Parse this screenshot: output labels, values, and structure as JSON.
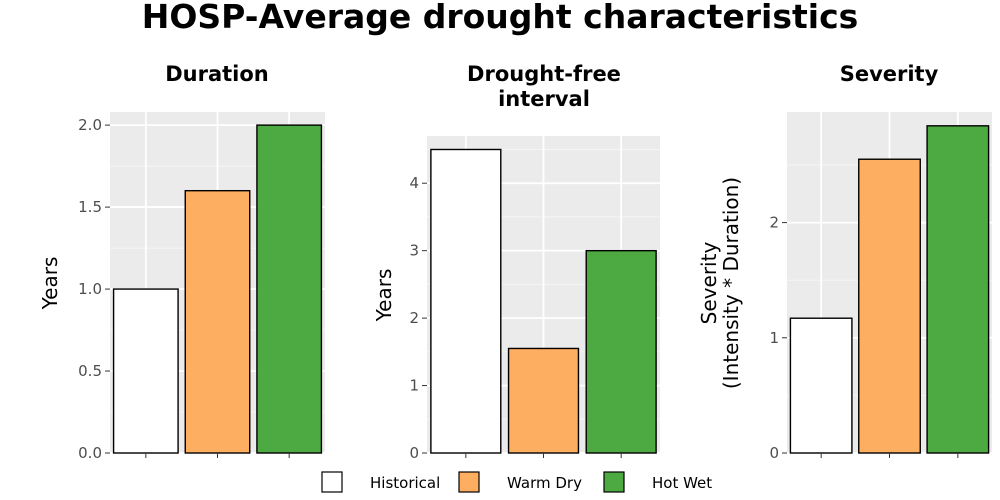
{
  "title": "HOSP-Average drought characteristics",
  "legend": {
    "position": "bottom",
    "items": [
      {
        "label": "Historical",
        "color": "#ffffff"
      },
      {
        "label": "Warm Dry",
        "color": "#fdae61"
      },
      {
        "label": "Hot Wet",
        "color": "#4daa42"
      }
    ]
  },
  "chart_data": [
    {
      "type": "bar",
      "title": "Duration",
      "ylabel": "Years",
      "xlabel": "",
      "categories": [
        "Historical",
        "Warm Dry",
        "Hot Wet"
      ],
      "values": [
        1.0,
        1.6,
        2.0
      ],
      "ylim": [
        0,
        2.08
      ],
      "yticks": [
        0,
        0.5,
        1.0,
        1.5,
        2.0
      ],
      "ytick_labels": [
        "0.0",
        "0.5",
        "1.0",
        "1.5",
        "2.0"
      ],
      "colors": [
        "#ffffff",
        "#fdae61",
        "#4daa42"
      ],
      "grid": true
    },
    {
      "type": "bar",
      "title": "Drought-free interval",
      "title_lines": [
        "Drought-free",
        "interval"
      ],
      "ylabel": "Years",
      "xlabel": "",
      "categories": [
        "Historical",
        "Warm Dry",
        "Hot Wet"
      ],
      "values": [
        4.5,
        1.55,
        3.0
      ],
      "ylim": [
        0,
        4.7
      ],
      "yticks": [
        0,
        1,
        2,
        3,
        4
      ],
      "ytick_labels": [
        "0",
        "1",
        "2",
        "3",
        "4"
      ],
      "colors": [
        "#ffffff",
        "#fdae61",
        "#4daa42"
      ],
      "grid": true
    },
    {
      "type": "bar",
      "title": "Severity",
      "ylabel": "Severity (Intensity * Duration)",
      "ylabel_lines": [
        "Severity",
        "(Intensity * Duration)"
      ],
      "xlabel": "",
      "categories": [
        "Historical",
        "Warm Dry",
        "Hot Wet"
      ],
      "values": [
        1.17,
        2.55,
        2.84
      ],
      "ylim": [
        0,
        2.96
      ],
      "yticks": [
        0,
        1,
        2
      ],
      "ytick_labels": [
        "0",
        "1",
        "2"
      ],
      "colors": [
        "#ffffff",
        "#fdae61",
        "#4daa42"
      ],
      "grid": true
    }
  ]
}
